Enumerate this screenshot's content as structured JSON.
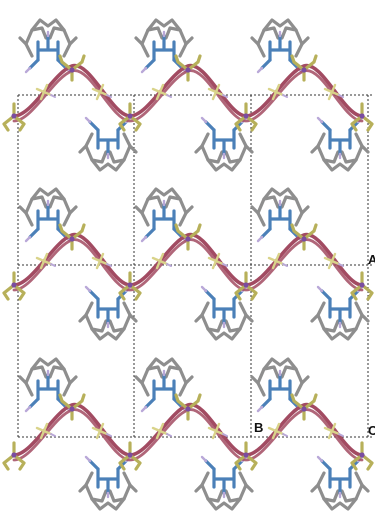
{
  "labels": {
    "a": "A",
    "b": "B",
    "c": "C"
  },
  "colors": {
    "background": "#ffffff",
    "cell_edge": "#333333",
    "chain_metal": "#a24b62",
    "chain_bridge": "#b7b05a",
    "bridge_light": "#d9d38a",
    "ligand_carbon": "#8e8e8e",
    "ligand_nitrogen": "#4b80b8",
    "hydrogen": "#b9a8d8",
    "atom_purple": "#7a4da0"
  },
  "structure": {
    "layers": 3,
    "unit_cells_per_layer": 3,
    "ligands_above_per_layer": 3,
    "ligands_below_per_layer": 3
  }
}
